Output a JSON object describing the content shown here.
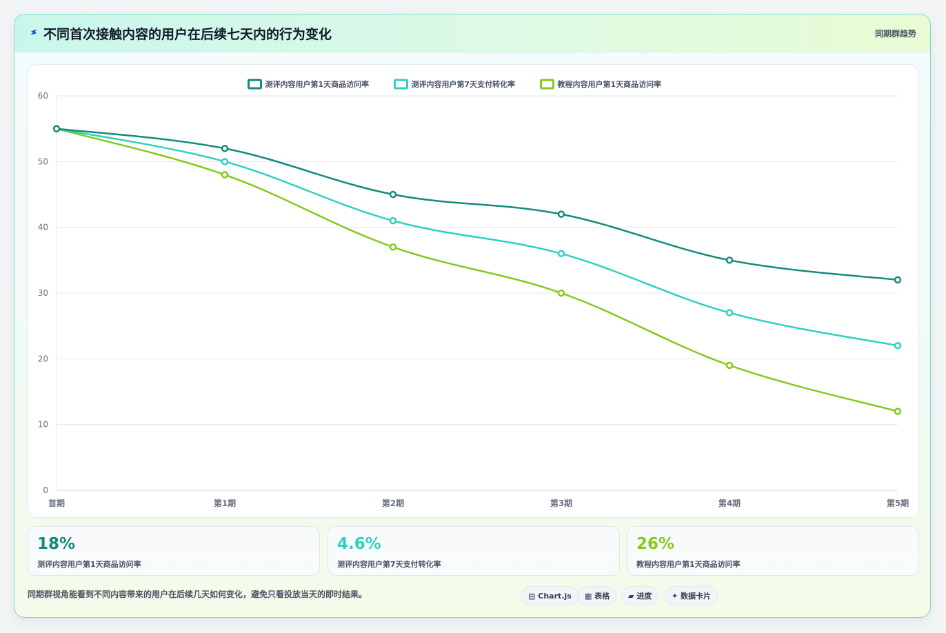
{
  "header": {
    "icon": "lightning-icon",
    "title": "不同首次接触内容的用户在后续七天内的行为变化",
    "tag": "同期群趋势"
  },
  "chart_data": {
    "type": "line",
    "categories": [
      "首期",
      "第1期",
      "第2期",
      "第3期",
      "第4期",
      "第5期"
    ],
    "ylim": [
      0,
      60
    ],
    "yticks": [
      0,
      10,
      20,
      30,
      40,
      50,
      60
    ],
    "grid": true,
    "legend_position": "top",
    "series": [
      {
        "name": "测评内容用户第1天商品访问率",
        "color": "#138a7a",
        "values": [
          55,
          52,
          45,
          42,
          35,
          32
        ]
      },
      {
        "name": "测评内容用户第7天支付转化率",
        "color": "#2fd0c0",
        "values": [
          55,
          50,
          41,
          36,
          27,
          22
        ]
      },
      {
        "name": "教程内容用户第1天商品访问率",
        "color": "#84c91c",
        "values": [
          55,
          48,
          37,
          30,
          19,
          12
        ]
      }
    ]
  },
  "stats": [
    {
      "value": "18%",
      "label": "测评内容用户第1天商品访问率",
      "color": "#138a7a"
    },
    {
      "value": "4.6%",
      "label": "测评内容用户第7天支付转化率",
      "color": "#2fd0c0"
    },
    {
      "value": "26%",
      "label": "教程内容用户第1天商品访问率",
      "color": "#84c91c"
    }
  ],
  "footnote": "同期群视角能看到不同内容带来的用户在后续几天如何变化，避免只看投放当天的即时结果。",
  "chips": [
    {
      "icon": "chart-icon",
      "glyph": "▤",
      "label": "Chart.js"
    },
    {
      "icon": "table-icon",
      "glyph": "▦",
      "label": "表格"
    },
    {
      "icon": "progress-icon",
      "glyph": "▰",
      "label": "进度"
    },
    {
      "icon": "sparkle-icon",
      "glyph": "✦",
      "label": "数据卡片"
    }
  ]
}
